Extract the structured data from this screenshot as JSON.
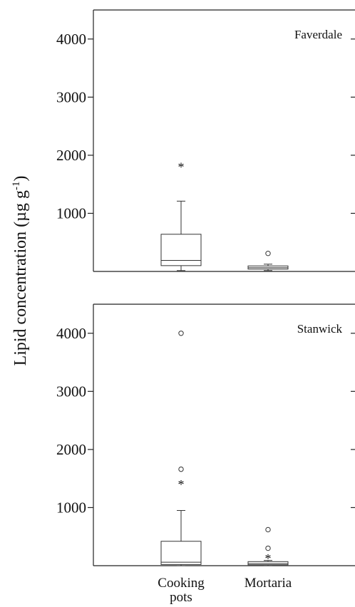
{
  "ylabel": "Lipid concentration (µg g",
  "ylabel_sup": "-1",
  "ylabel_close": ")",
  "colors": {
    "axis": "#222222",
    "box": "#333333"
  },
  "chart_data": [
    {
      "type": "box",
      "title": "Faverdale",
      "ylim": [
        0,
        4500
      ],
      "yticks": [
        1000,
        2000,
        3000,
        4000
      ],
      "categories": [
        "Cooking pots",
        "Mortaria"
      ],
      "boxes": [
        {
          "category": "Cooking pots",
          "min": 15,
          "q1": 100,
          "median": 190,
          "q3": 640,
          "max": 1210,
          "outliers": [],
          "extremes": [
            1820
          ]
        },
        {
          "category": "Mortaria",
          "min": 15,
          "q1": 40,
          "median": 65,
          "q3": 95,
          "max": 125,
          "outliers": [
            310
          ],
          "extremes": []
        }
      ]
    },
    {
      "type": "box",
      "title": "Stanwick",
      "ylim": [
        0,
        4500
      ],
      "yticks": [
        1000,
        2000,
        3000,
        4000
      ],
      "categories": [
        "Cooking pots",
        "Mortaria"
      ],
      "x_tick_labels": [
        [
          "Cooking",
          "pots"
        ],
        [
          "Mortaria"
        ]
      ],
      "boxes": [
        {
          "category": "Cooking pots",
          "min": 0,
          "q1": 20,
          "median": 60,
          "q3": 420,
          "max": 950,
          "outliers": [
            1660,
            4000
          ],
          "extremes": [
            1420
          ]
        },
        {
          "category": "Mortaria",
          "min": 0,
          "q1": 15,
          "median": 35,
          "q3": 70,
          "max": 90,
          "outliers": [
            300,
            620
          ],
          "extremes": [
            150
          ]
        }
      ]
    }
  ]
}
